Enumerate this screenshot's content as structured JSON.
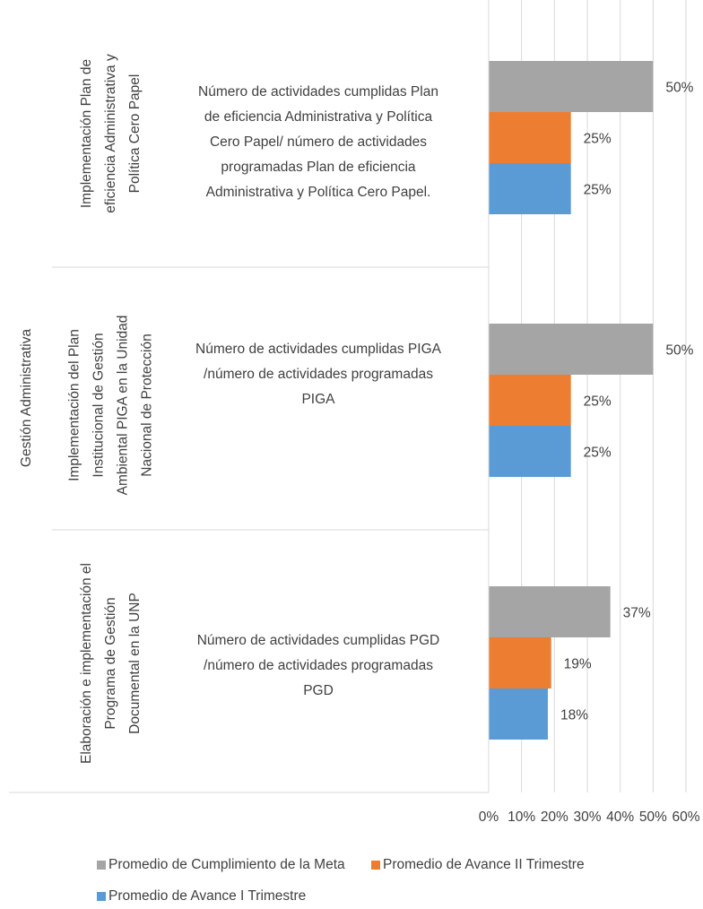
{
  "chart_data": {
    "type": "bar",
    "orientation": "horizontal",
    "category_group": "Gestión Administrativa",
    "category_parents": [
      [
        "Implementación Plan de",
        "eficiencia Administrativa  y",
        "Política Cero Papel"
      ],
      [
        "Implementación del Plan",
        "Institucional de Gestión",
        "Ambiental  PIGA  en la Unidad",
        "Nacional de Protección"
      ],
      [
        "Elaboración e implementación el",
        "Programa de Gestión",
        "Documental en la UNP"
      ]
    ],
    "categories": [
      [
        "Número de actividades cumplidas  Plan",
        "de eficiencia Administrativa  y Política",
        "Cero Papel/ número de actividades",
        "programadas  Plan de eficiencia",
        "Administrativa  y Política Cero Papel."
      ],
      [
        "Número de actividades cumplidas PIGA",
        "/número de actividades programadas",
        "PIGA"
      ],
      [
        "Número de actividades cumplidas PGD",
        "/número de actividades programadas",
        "PGD"
      ]
    ],
    "series": [
      {
        "name": "Promedio de Cumplimiento de la Meta",
        "color": "#a5a5a5",
        "values": [
          50,
          50,
          37
        ],
        "value_labels": [
          "50%",
          "50%",
          "37%"
        ]
      },
      {
        "name": "Promedio de Avance II Trimestre",
        "color": "#ed7d31",
        "values": [
          25,
          25,
          19
        ],
        "value_labels": [
          "25%",
          "25%",
          "19%"
        ]
      },
      {
        "name": "Promedio de Avance I Trimestre",
        "color": "#5b9bd5",
        "values": [
          25,
          25,
          18
        ],
        "value_labels": [
          "25%",
          "25%",
          "18%"
        ]
      }
    ],
    "xlim": [
      0,
      60
    ],
    "xticks": [
      {
        "value": 0,
        "label": "0%"
      },
      {
        "value": 10,
        "label": "10%"
      },
      {
        "value": 20,
        "label": "20%"
      },
      {
        "value": 30,
        "label": "30%"
      },
      {
        "value": 40,
        "label": "40%"
      },
      {
        "value": 50,
        "label": "50%"
      },
      {
        "value": 60,
        "label": "60%"
      }
    ],
    "grid": true
  }
}
